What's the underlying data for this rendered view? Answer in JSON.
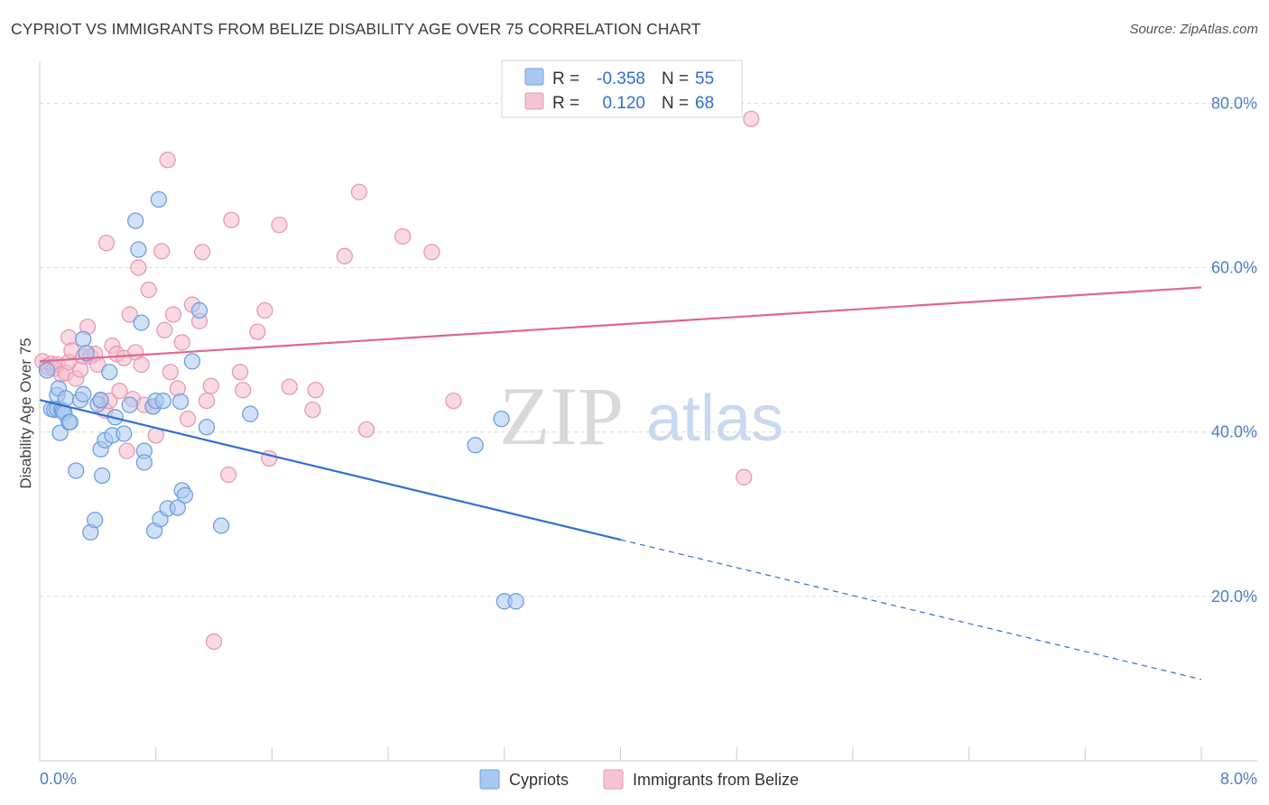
{
  "header": {
    "title": "CYPRIOT VS IMMIGRANTS FROM BELIZE DISABILITY AGE OVER 75 CORRELATION CHART",
    "source": "Source: ZipAtlas.com"
  },
  "watermark": {
    "zip": "ZIP",
    "atlas": "atlas"
  },
  "colors": {
    "blue": "#2f6fd0",
    "blue_fill": "#a9c8f0",
    "pink": "#e0668f",
    "pink_fill": "#f6b9cc",
    "grid": "#d9d9d9",
    "tick_text": "#4a7ec8"
  },
  "legend": {
    "r_label": "R =",
    "n_label": "N =",
    "rows": [
      {
        "r": "-0.358",
        "n": "55"
      },
      {
        "r": "0.120",
        "n": "68"
      }
    ]
  },
  "bottom_legend": {
    "items": [
      {
        "label": "Cypriots"
      },
      {
        "label": "Immigrants from Belize"
      }
    ]
  },
  "chart_data": {
    "type": "scatter",
    "title": "CYPRIOT VS IMMIGRANTS FROM BELIZE DISABILITY AGE OVER 75 CORRELATION CHART",
    "xlabel": "",
    "ylabel": "Disability Age Over 75",
    "xlim": [
      0,
      8
    ],
    "ylim": [
      0,
      80
    ],
    "x_tick_labels": [
      "0.0%",
      "8.0%"
    ],
    "y_ticks": [
      20,
      40,
      60,
      80
    ],
    "y_tick_labels": [
      "20.0%",
      "40.0%",
      "60.0%",
      "80.0%"
    ],
    "grid": true,
    "legend_position": "top-center",
    "series": [
      {
        "name": "Cypriots",
        "color": "#2f6fd0",
        "r": -0.358,
        "n": 55,
        "trend": {
          "x0": 0,
          "y0": 43.9,
          "x1": 4.0,
          "y1": 26.9,
          "dash_x1": 8.0,
          "dash_y1": 9.9
        },
        "points": [
          [
            0.05,
            47.5
          ],
          [
            0.08,
            42.8
          ],
          [
            0.1,
            42.7
          ],
          [
            0.12,
            44.5
          ],
          [
            0.12,
            42.8
          ],
          [
            0.13,
            45.3
          ],
          [
            0.14,
            39.9
          ],
          [
            0.15,
            42.7
          ],
          [
            0.16,
            42.5
          ],
          [
            0.17,
            42.3
          ],
          [
            0.18,
            44.1
          ],
          [
            0.2,
            41.2
          ],
          [
            0.21,
            41.2
          ],
          [
            0.25,
            35.3
          ],
          [
            0.28,
            43.9
          ],
          [
            0.3,
            44.6
          ],
          [
            0.3,
            51.3
          ],
          [
            0.32,
            49.6
          ],
          [
            0.35,
            27.8
          ],
          [
            0.38,
            29.3
          ],
          [
            0.4,
            43.4
          ],
          [
            0.42,
            37.9
          ],
          [
            0.43,
            34.7
          ],
          [
            0.45,
            39.0
          ],
          [
            0.48,
            47.3
          ],
          [
            0.5,
            39.6
          ],
          [
            0.52,
            41.8
          ],
          [
            0.58,
            39.8
          ],
          [
            0.62,
            43.3
          ],
          [
            0.66,
            65.7
          ],
          [
            0.68,
            62.2
          ],
          [
            0.7,
            53.3
          ],
          [
            0.72,
            37.7
          ],
          [
            0.72,
            36.3
          ],
          [
            0.78,
            43.1
          ],
          [
            0.79,
            28.0
          ],
          [
            0.8,
            43.8
          ],
          [
            0.82,
            68.3
          ],
          [
            0.83,
            29.4
          ],
          [
            0.85,
            43.8
          ],
          [
            0.88,
            30.7
          ],
          [
            0.95,
            30.8
          ],
          [
            0.97,
            43.7
          ],
          [
            0.98,
            32.9
          ],
          [
            1.0,
            32.3
          ],
          [
            1.05,
            48.6
          ],
          [
            1.1,
            54.8
          ],
          [
            1.15,
            40.6
          ],
          [
            1.25,
            28.6
          ],
          [
            1.45,
            42.2
          ],
          [
            3.0,
            38.4
          ],
          [
            3.18,
            41.6
          ],
          [
            3.2,
            19.4
          ],
          [
            3.28,
            19.4
          ],
          [
            0.42,
            43.9
          ]
        ]
      },
      {
        "name": "Immigrants from Belize",
        "color": "#e0668f",
        "r": 0.12,
        "n": 68,
        "trend": {
          "x0": 0,
          "y0": 48.6,
          "x1": 8.0,
          "y1": 57.6
        },
        "points": [
          [
            0.02,
            48.6
          ],
          [
            0.05,
            48.0
          ],
          [
            0.06,
            47.8
          ],
          [
            0.08,
            48.3
          ],
          [
            0.1,
            47.7
          ],
          [
            0.12,
            48.2
          ],
          [
            0.15,
            47.0
          ],
          [
            0.18,
            47.2
          ],
          [
            0.2,
            48.5
          ],
          [
            0.2,
            51.5
          ],
          [
            0.22,
            49.9
          ],
          [
            0.25,
            46.5
          ],
          [
            0.28,
            47.6
          ],
          [
            0.3,
            49.2
          ],
          [
            0.33,
            52.8
          ],
          [
            0.35,
            49.2
          ],
          [
            0.38,
            49.5
          ],
          [
            0.4,
            48.2
          ],
          [
            0.42,
            43.8
          ],
          [
            0.45,
            42.6
          ],
          [
            0.46,
            63.0
          ],
          [
            0.48,
            43.8
          ],
          [
            0.5,
            50.5
          ],
          [
            0.53,
            49.5
          ],
          [
            0.55,
            45.0
          ],
          [
            0.58,
            49.0
          ],
          [
            0.6,
            37.7
          ],
          [
            0.62,
            54.3
          ],
          [
            0.64,
            44.0
          ],
          [
            0.66,
            49.7
          ],
          [
            0.68,
            60.0
          ],
          [
            0.7,
            48.2
          ],
          [
            0.72,
            43.3
          ],
          [
            0.75,
            57.3
          ],
          [
            0.78,
            43.1
          ],
          [
            0.8,
            39.6
          ],
          [
            0.84,
            62.0
          ],
          [
            0.86,
            52.4
          ],
          [
            0.88,
            73.1
          ],
          [
            0.9,
            47.3
          ],
          [
            0.92,
            54.3
          ],
          [
            0.95,
            45.3
          ],
          [
            0.98,
            50.9
          ],
          [
            1.02,
            41.6
          ],
          [
            1.05,
            55.5
          ],
          [
            1.1,
            53.5
          ],
          [
            1.12,
            61.9
          ],
          [
            1.15,
            43.8
          ],
          [
            1.18,
            45.6
          ],
          [
            1.2,
            14.5
          ],
          [
            1.32,
            65.8
          ],
          [
            1.3,
            34.8
          ],
          [
            1.38,
            47.3
          ],
          [
            1.4,
            45.1
          ],
          [
            1.5,
            52.2
          ],
          [
            1.55,
            54.8
          ],
          [
            1.58,
            36.8
          ],
          [
            1.65,
            65.2
          ],
          [
            1.72,
            45.5
          ],
          [
            1.88,
            42.7
          ],
          [
            1.9,
            45.1
          ],
          [
            2.1,
            61.4
          ],
          [
            2.2,
            69.2
          ],
          [
            2.25,
            40.3
          ],
          [
            2.5,
            63.8
          ],
          [
            2.7,
            61.9
          ],
          [
            2.85,
            43.8
          ],
          [
            4.85,
            34.5
          ]
        ]
      }
    ],
    "extra_points_pink": [
      [
        4.9,
        78.1
      ]
    ]
  }
}
